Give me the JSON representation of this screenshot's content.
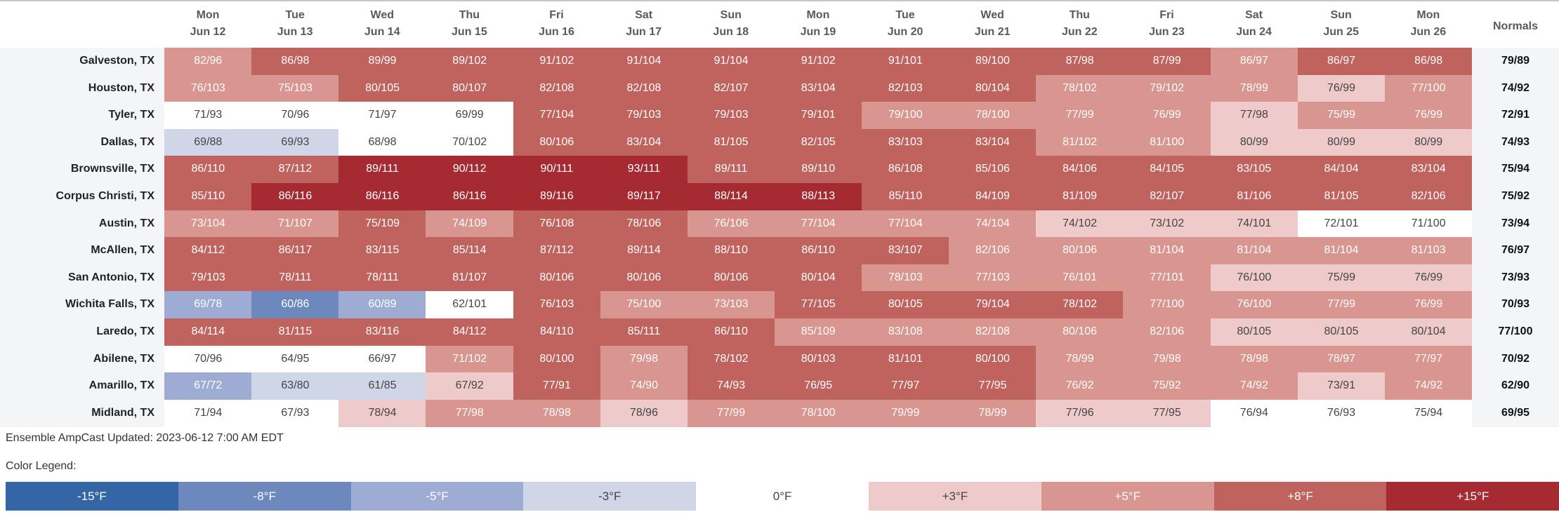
{
  "chart_data": {
    "type": "heatmap",
    "columns": [
      {
        "day": "Mon",
        "date": "Jun 12"
      },
      {
        "day": "Tue",
        "date": "Jun 13"
      },
      {
        "day": "Wed",
        "date": "Jun 14"
      },
      {
        "day": "Thu",
        "date": "Jun 15"
      },
      {
        "day": "Fri",
        "date": "Jun 16"
      },
      {
        "day": "Sat",
        "date": "Jun 17"
      },
      {
        "day": "Sun",
        "date": "Jun 18"
      },
      {
        "day": "Mon",
        "date": "Jun 19"
      },
      {
        "day": "Tue",
        "date": "Jun 20"
      },
      {
        "day": "Wed",
        "date": "Jun 21"
      },
      {
        "day": "Thu",
        "date": "Jun 22"
      },
      {
        "day": "Fri",
        "date": "Jun 23"
      },
      {
        "day": "Sat",
        "date": "Jun 24"
      },
      {
        "day": "Sun",
        "date": "Jun 25"
      },
      {
        "day": "Mon",
        "date": "Jun 26"
      }
    ],
    "normals_header": "Normals",
    "rows": [
      {
        "city": "Galveston, TX",
        "values": [
          "82/96",
          "86/98",
          "89/99",
          "89/102",
          "91/102",
          "91/104",
          "91/104",
          "91/102",
          "91/101",
          "89/100",
          "87/98",
          "87/99",
          "86/97",
          "86/97",
          "86/98"
        ],
        "anomaly": [
          5,
          8,
          8,
          8,
          8,
          8,
          8,
          8,
          8,
          8,
          8,
          8,
          5,
          8,
          8
        ],
        "normal": "79/89"
      },
      {
        "city": "Houston, TX",
        "values": [
          "76/103",
          "75/103",
          "80/105",
          "80/107",
          "82/108",
          "82/108",
          "82/107",
          "83/104",
          "82/103",
          "80/104",
          "78/102",
          "79/102",
          "78/99",
          "76/99",
          "77/100"
        ],
        "anomaly": [
          5,
          5,
          8,
          8,
          8,
          8,
          8,
          8,
          8,
          8,
          5,
          5,
          5,
          3,
          5
        ],
        "normal": "74/92"
      },
      {
        "city": "Tyler, TX",
        "values": [
          "71/93",
          "70/96",
          "71/97",
          "69/99",
          "77/104",
          "79/103",
          "79/103",
          "79/101",
          "79/100",
          "78/100",
          "77/99",
          "76/99",
          "77/98",
          "75/99",
          "76/99"
        ],
        "anomaly": [
          0,
          0,
          0,
          0,
          8,
          8,
          8,
          8,
          5,
          5,
          5,
          5,
          3,
          5,
          5
        ],
        "normal": "72/91"
      },
      {
        "city": "Dallas, TX",
        "values": [
          "69/88",
          "69/93",
          "68/98",
          "70/102",
          "80/106",
          "83/104",
          "81/105",
          "82/105",
          "83/103",
          "83/104",
          "81/102",
          "81/100",
          "80/99",
          "80/99",
          "80/99"
        ],
        "anomaly": [
          -3,
          -3,
          0,
          0,
          8,
          8,
          8,
          8,
          8,
          8,
          5,
          5,
          3,
          3,
          3
        ],
        "normal": "74/93"
      },
      {
        "city": "Brownsville, TX",
        "values": [
          "86/110",
          "87/112",
          "89/111",
          "90/112",
          "90/111",
          "93/111",
          "89/111",
          "89/110",
          "86/108",
          "85/106",
          "84/106",
          "84/105",
          "83/105",
          "84/104",
          "83/104"
        ],
        "anomaly": [
          8,
          8,
          15,
          15,
          15,
          15,
          8,
          8,
          8,
          8,
          8,
          8,
          8,
          8,
          8
        ],
        "normal": "75/94"
      },
      {
        "city": "Corpus Christi, TX",
        "values": [
          "85/110",
          "86/116",
          "86/116",
          "86/116",
          "89/116",
          "89/117",
          "88/114",
          "88/113",
          "85/110",
          "84/109",
          "81/109",
          "82/107",
          "81/106",
          "81/105",
          "82/106"
        ],
        "anomaly": [
          8,
          15,
          15,
          15,
          15,
          15,
          15,
          15,
          8,
          8,
          8,
          8,
          8,
          8,
          8
        ],
        "normal": "75/92"
      },
      {
        "city": "Austin, TX",
        "values": [
          "73/104",
          "71/107",
          "75/109",
          "74/109",
          "76/108",
          "78/106",
          "76/106",
          "77/104",
          "77/104",
          "74/104",
          "74/102",
          "73/102",
          "74/101",
          "72/101",
          "71/100"
        ],
        "anomaly": [
          5,
          5,
          8,
          5,
          8,
          8,
          5,
          5,
          5,
          5,
          3,
          3,
          3,
          0,
          0
        ],
        "normal": "73/94"
      },
      {
        "city": "McAllen, TX",
        "values": [
          "84/112",
          "86/117",
          "83/115",
          "85/114",
          "87/112",
          "89/114",
          "88/110",
          "86/110",
          "83/107",
          "82/106",
          "80/106",
          "81/104",
          "81/104",
          "81/104",
          "81/103"
        ],
        "anomaly": [
          8,
          8,
          8,
          8,
          8,
          8,
          8,
          8,
          8,
          5,
          5,
          5,
          5,
          5,
          5
        ],
        "normal": "76/97"
      },
      {
        "city": "San Antonio, TX",
        "values": [
          "79/103",
          "78/111",
          "78/111",
          "81/107",
          "80/106",
          "80/106",
          "80/106",
          "80/104",
          "78/103",
          "77/103",
          "76/101",
          "77/101",
          "76/100",
          "75/99",
          "76/99"
        ],
        "anomaly": [
          8,
          8,
          8,
          8,
          8,
          8,
          8,
          8,
          5,
          5,
          5,
          5,
          3,
          3,
          3
        ],
        "normal": "73/93"
      },
      {
        "city": "Wichita Falls, TX",
        "values": [
          "69/78",
          "60/86",
          "60/89",
          "62/101",
          "76/103",
          "75/100",
          "73/103",
          "77/105",
          "80/105",
          "79/104",
          "78/102",
          "77/100",
          "76/100",
          "77/99",
          "76/99"
        ],
        "anomaly": [
          -5,
          -8,
          -5,
          0,
          8,
          5,
          5,
          8,
          8,
          8,
          8,
          5,
          5,
          5,
          5
        ],
        "normal": "70/93"
      },
      {
        "city": "Laredo, TX",
        "values": [
          "84/114",
          "81/115",
          "83/116",
          "84/112",
          "84/110",
          "85/111",
          "86/110",
          "85/109",
          "83/108",
          "82/108",
          "80/106",
          "82/106",
          "80/105",
          "80/105",
          "80/104"
        ],
        "anomaly": [
          8,
          8,
          8,
          8,
          8,
          8,
          8,
          5,
          5,
          5,
          5,
          5,
          3,
          3,
          3
        ],
        "normal": "77/100"
      },
      {
        "city": "Abilene, TX",
        "values": [
          "70/96",
          "64/95",
          "66/97",
          "71/102",
          "80/100",
          "79/98",
          "78/102",
          "80/103",
          "81/101",
          "80/100",
          "78/99",
          "79/98",
          "78/98",
          "78/97",
          "77/97"
        ],
        "anomaly": [
          0,
          0,
          0,
          5,
          8,
          5,
          8,
          8,
          8,
          8,
          5,
          5,
          5,
          5,
          5
        ],
        "normal": "70/92"
      },
      {
        "city": "Amarillo, TX",
        "values": [
          "67/72",
          "63/80",
          "61/85",
          "67/92",
          "77/91",
          "74/90",
          "74/93",
          "76/95",
          "77/97",
          "77/95",
          "76/92",
          "75/92",
          "74/92",
          "73/91",
          "74/92"
        ],
        "anomaly": [
          -5,
          -3,
          -3,
          3,
          8,
          5,
          8,
          8,
          8,
          8,
          5,
          5,
          5,
          3,
          5
        ],
        "normal": "62/90"
      },
      {
        "city": "Midland, TX",
        "values": [
          "71/94",
          "67/93",
          "78/94",
          "77/98",
          "78/98",
          "78/96",
          "77/99",
          "78/100",
          "79/99",
          "78/99",
          "77/96",
          "77/95",
          "76/94",
          "76/93",
          "75/94"
        ],
        "anomaly": [
          0,
          0,
          3,
          5,
          5,
          3,
          5,
          5,
          5,
          5,
          3,
          3,
          0,
          0,
          0
        ],
        "normal": "69/95"
      }
    ],
    "legend": [
      {
        "label": "-15°F",
        "level": -15,
        "color": "#3465a4"
      },
      {
        "label": "-8°F",
        "level": -8,
        "color": "#6c88bd"
      },
      {
        "label": "-5°F",
        "level": -5,
        "color": "#9eacd3"
      },
      {
        "label": "-3°F",
        "level": -3,
        "color": "#cfd6e8"
      },
      {
        "label": "0°F",
        "level": 0,
        "color": "#ffffff"
      },
      {
        "label": "+3°F",
        "level": 3,
        "color": "#eecbca"
      },
      {
        "label": "+5°F",
        "level": 5,
        "color": "#d9958f"
      },
      {
        "label": "+8°F",
        "level": 8,
        "color": "#c0625d"
      },
      {
        "label": "+15°F",
        "level": 15,
        "color": "#a52a31"
      }
    ]
  },
  "footer": {
    "updated": "Ensemble AmpCast Updated: 2023-06-12 7:00 AM EDT",
    "legend_title": "Color Legend:"
  }
}
